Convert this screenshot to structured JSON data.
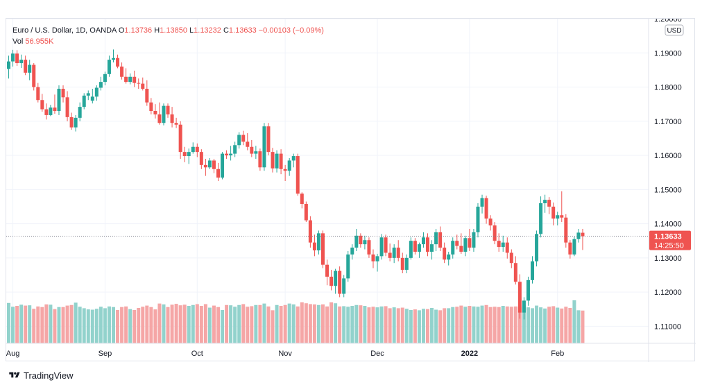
{
  "legend": {
    "symbol": "Euro / U.S. Dollar, 1D, OANDA",
    "o_label": "O",
    "o": "1.13736",
    "h_label": "H",
    "h": "1.13850",
    "l_label": "L",
    "l": "1.13232",
    "c_label": "C",
    "c": "1.13633",
    "change": "−0.00103 (−0.09%)",
    "vol_label": "Vol",
    "vol": "56.955K"
  },
  "price_scale": {
    "currency": "USD",
    "current_price": "1.13633",
    "countdown": "14:25:50"
  },
  "brand": {
    "name": "TradingView"
  },
  "colors": {
    "up": "#26a69a",
    "down": "#ef5350",
    "vol_up": "#92d2cc",
    "vol_down": "#f5a6a6",
    "grid": "#f0f3fa",
    "text": "#131722"
  },
  "chart_data": {
    "type": "candlestick",
    "title": "Euro / U.S. Dollar, 1D, OANDA",
    "ylim": [
      1.105,
      1.2
    ],
    "y_ticks": [
      "1.20000",
      "1.19000",
      "1.18000",
      "1.17000",
      "1.16000",
      "1.15000",
      "1.14000",
      "1.13000",
      "1.12000",
      "1.11000"
    ],
    "x_ticks": [
      {
        "label": "Aug",
        "index": 1
      },
      {
        "label": "Sep",
        "index": 23
      },
      {
        "label": "Oct",
        "index": 45
      },
      {
        "label": "Nov",
        "index": 66
      },
      {
        "label": "Dec",
        "index": 88
      },
      {
        "label": "2022",
        "index": 110
      },
      {
        "label": "Feb",
        "index": 131
      }
    ],
    "current_price_line": 1.13633,
    "ohlc": [
      [
        1.1853,
        1.1892,
        1.1825,
        1.1875
      ],
      [
        1.1875,
        1.1909,
        1.186,
        1.1898
      ],
      [
        1.1898,
        1.1908,
        1.1862,
        1.187
      ],
      [
        1.187,
        1.1895,
        1.1856,
        1.188
      ],
      [
        1.188,
        1.1892,
        1.1835,
        1.1842
      ],
      [
        1.1842,
        1.188,
        1.182,
        1.1865
      ],
      [
        1.1865,
        1.187,
        1.179,
        1.18
      ],
      [
        1.18,
        1.1812,
        1.1755,
        1.1762
      ],
      [
        1.1762,
        1.178,
        1.1728,
        1.1735
      ],
      [
        1.1735,
        1.1752,
        1.1705,
        1.1718
      ],
      [
        1.1718,
        1.1748,
        1.1715,
        1.174
      ],
      [
        1.174,
        1.1778,
        1.1722,
        1.173
      ],
      [
        1.173,
        1.1805,
        1.1718,
        1.1795
      ],
      [
        1.1795,
        1.1805,
        1.1755,
        1.177
      ],
      [
        1.177,
        1.1788,
        1.17,
        1.1712
      ],
      [
        1.1712,
        1.1725,
        1.1675,
        1.1682
      ],
      [
        1.1682,
        1.1718,
        1.167,
        1.171
      ],
      [
        1.171,
        1.1755,
        1.17,
        1.1742
      ],
      [
        1.1742,
        1.1782,
        1.1735,
        1.1775
      ],
      [
        1.1775,
        1.179,
        1.1762,
        1.1782
      ],
      [
        1.176,
        1.1795,
        1.1752,
        1.1772
      ],
      [
        1.1772,
        1.1805,
        1.176,
        1.1798
      ],
      [
        1.1798,
        1.183,
        1.179,
        1.1815
      ],
      [
        1.1815,
        1.1845,
        1.1805,
        1.1838
      ],
      [
        1.1838,
        1.1892,
        1.183,
        1.188
      ],
      [
        1.188,
        1.191,
        1.1872,
        1.1885
      ],
      [
        1.1885,
        1.1895,
        1.1855,
        1.186
      ],
      [
        1.186,
        1.1872,
        1.1822,
        1.183
      ],
      [
        1.183,
        1.1855,
        1.181,
        1.1815
      ],
      [
        1.1815,
        1.184,
        1.1808,
        1.183
      ],
      [
        1.183,
        1.1848,
        1.18,
        1.1812
      ],
      [
        1.1812,
        1.1825,
        1.1795,
        1.181
      ],
      [
        1.181,
        1.1828,
        1.179,
        1.1795
      ],
      [
        1.1795,
        1.182,
        1.1745,
        1.1755
      ],
      [
        1.1755,
        1.1768,
        1.172,
        1.173
      ],
      [
        1.173,
        1.175,
        1.1708,
        1.172
      ],
      [
        1.172,
        1.1755,
        1.169,
        1.1695
      ],
      [
        1.1695,
        1.1752,
        1.1688,
        1.1745
      ],
      [
        1.1745,
        1.1752,
        1.171,
        1.172
      ],
      [
        1.172,
        1.1742,
        1.1682,
        1.1695
      ],
      [
        1.1695,
        1.171,
        1.168,
        1.169
      ],
      [
        1.169,
        1.17,
        1.159,
        1.161
      ],
      [
        1.161,
        1.1625,
        1.158,
        1.1598
      ],
      [
        1.1598,
        1.162,
        1.1575,
        1.161
      ],
      [
        1.161,
        1.1638,
        1.1605,
        1.1625
      ],
      [
        1.1625,
        1.1635,
        1.1595,
        1.161
      ],
      [
        1.161,
        1.1618,
        1.156,
        1.1572
      ],
      [
        1.1572,
        1.159,
        1.154,
        1.1565
      ],
      [
        1.1565,
        1.1592,
        1.156,
        1.1585
      ],
      [
        1.1585,
        1.159,
        1.1548,
        1.156
      ],
      [
        1.156,
        1.1578,
        1.1525,
        1.1535
      ],
      [
        1.1535,
        1.161,
        1.153,
        1.1605
      ],
      [
        1.1605,
        1.1615,
        1.159,
        1.16
      ],
      [
        1.16,
        1.1628,
        1.1585,
        1.1605
      ],
      [
        1.1605,
        1.164,
        1.1595,
        1.163
      ],
      [
        1.163,
        1.1668,
        1.162,
        1.166
      ],
      [
        1.166,
        1.1672,
        1.163,
        1.164
      ],
      [
        1.164,
        1.1665,
        1.1615,
        1.1625
      ],
      [
        1.1625,
        1.1645,
        1.1595,
        1.1605
      ],
      [
        1.1605,
        1.1628,
        1.159,
        1.1612
      ],
      [
        1.1612,
        1.162,
        1.1555,
        1.1565
      ],
      [
        1.1565,
        1.1695,
        1.1555,
        1.1685
      ],
      [
        1.1685,
        1.1695,
        1.16,
        1.161
      ],
      [
        1.161,
        1.1622,
        1.155,
        1.1562
      ],
      [
        1.1562,
        1.1615,
        1.155,
        1.1605
      ],
      [
        1.1605,
        1.1618,
        1.1545,
        1.156
      ],
      [
        1.156,
        1.1572,
        1.1525,
        1.1555
      ],
      [
        1.1555,
        1.1592,
        1.154,
        1.1585
      ],
      [
        1.1585,
        1.1605,
        1.1565,
        1.1598
      ],
      [
        1.1598,
        1.1605,
        1.1482,
        1.1488
      ],
      [
        1.1488,
        1.1492,
        1.1445,
        1.1458
      ],
      [
        1.1458,
        1.1465,
        1.1405,
        1.141
      ],
      [
        1.141,
        1.1422,
        1.133,
        1.1345
      ],
      [
        1.1345,
        1.1368,
        1.1305,
        1.1322
      ],
      [
        1.1322,
        1.138,
        1.131,
        1.1372
      ],
      [
        1.1372,
        1.138,
        1.127,
        1.128
      ],
      [
        1.128,
        1.1295,
        1.122,
        1.1245
      ],
      [
        1.1245,
        1.1265,
        1.1205,
        1.1218
      ],
      [
        1.1218,
        1.1268,
        1.1195,
        1.1262
      ],
      [
        1.1262,
        1.1275,
        1.1185,
        1.1195
      ],
      [
        1.1195,
        1.125,
        1.1185,
        1.124
      ],
      [
        1.124,
        1.132,
        1.123,
        1.131
      ],
      [
        1.131,
        1.134,
        1.1295,
        1.133
      ],
      [
        1.133,
        1.1385,
        1.132,
        1.1365
      ],
      [
        1.1365,
        1.1372,
        1.133,
        1.134
      ],
      [
        1.134,
        1.1365,
        1.1325,
        1.1352
      ],
      [
        1.1352,
        1.136,
        1.13,
        1.131
      ],
      [
        1.131,
        1.1325,
        1.127,
        1.129
      ],
      [
        1.129,
        1.1312,
        1.126,
        1.1305
      ],
      [
        1.1305,
        1.137,
        1.1295,
        1.136
      ],
      [
        1.136,
        1.1368,
        1.1305,
        1.1315
      ],
      [
        1.1315,
        1.1342,
        1.129,
        1.13
      ],
      [
        1.13,
        1.134,
        1.1285,
        1.133
      ],
      [
        1.133,
        1.1352,
        1.129,
        1.13
      ],
      [
        1.13,
        1.1315,
        1.1255,
        1.1265
      ],
      [
        1.1265,
        1.131,
        1.1255,
        1.13
      ],
      [
        1.13,
        1.136,
        1.1295,
        1.135
      ],
      [
        1.135,
        1.1358,
        1.131,
        1.1318
      ],
      [
        1.1318,
        1.1345,
        1.13,
        1.134
      ],
      [
        1.134,
        1.1375,
        1.133,
        1.136
      ],
      [
        1.136,
        1.1372,
        1.1305,
        1.1318
      ],
      [
        1.1318,
        1.1352,
        1.1295,
        1.134
      ],
      [
        1.134,
        1.1385,
        1.132,
        1.1375
      ],
      [
        1.1375,
        1.1392,
        1.132,
        1.133
      ],
      [
        1.133,
        1.1345,
        1.1285,
        1.1295
      ],
      [
        1.1295,
        1.1318,
        1.1278,
        1.131
      ],
      [
        1.131,
        1.136,
        1.1298,
        1.135
      ],
      [
        1.135,
        1.1368,
        1.1325,
        1.1335
      ],
      [
        1.1335,
        1.1372,
        1.1312,
        1.1318
      ],
      [
        1.1318,
        1.1365,
        1.1305,
        1.1358
      ],
      [
        1.1358,
        1.1385,
        1.132,
        1.133
      ],
      [
        1.133,
        1.1385,
        1.1318,
        1.1375
      ],
      [
        1.1375,
        1.146,
        1.136,
        1.145
      ],
      [
        1.145,
        1.1485,
        1.143,
        1.1475
      ],
      [
        1.1475,
        1.1482,
        1.14,
        1.1415
      ],
      [
        1.1415,
        1.1425,
        1.138,
        1.1395
      ],
      [
        1.1395,
        1.1405,
        1.134,
        1.135
      ],
      [
        1.135,
        1.1372,
        1.1318,
        1.1332
      ],
      [
        1.1332,
        1.1365,
        1.1318,
        1.1345
      ],
      [
        1.1345,
        1.136,
        1.1298,
        1.1315
      ],
      [
        1.1315,
        1.1325,
        1.127,
        1.1285
      ],
      [
        1.1285,
        1.1305,
        1.1222,
        1.123
      ],
      [
        1.123,
        1.1252,
        1.1122,
        1.114
      ],
      [
        1.114,
        1.1185,
        1.112,
        1.1175
      ],
      [
        1.1175,
        1.1245,
        1.116,
        1.1235
      ],
      [
        1.1235,
        1.1305,
        1.1225,
        1.129
      ],
      [
        1.129,
        1.138,
        1.1275,
        1.137
      ],
      [
        1.137,
        1.148,
        1.136,
        1.146
      ],
      [
        1.146,
        1.1485,
        1.1432,
        1.147
      ],
      [
        1.147,
        1.1478,
        1.1428,
        1.145
      ],
      [
        1.145,
        1.1462,
        1.1395,
        1.1415
      ],
      [
        1.1415,
        1.1435,
        1.1395,
        1.1425
      ],
      [
        1.1425,
        1.1495,
        1.1405,
        1.1418
      ],
      [
        1.1418,
        1.1428,
        1.133,
        1.1345
      ],
      [
        1.1345,
        1.1352,
        1.1298,
        1.131
      ],
      [
        1.131,
        1.1362,
        1.1305,
        1.1355
      ],
      [
        1.1355,
        1.1385,
        1.1345,
        1.1374
      ],
      [
        1.13736,
        1.1385,
        1.13232,
        1.13633
      ]
    ],
    "volume": [
      138,
      125,
      128,
      132,
      129,
      130,
      118,
      126,
      124,
      133,
      132,
      117,
      124,
      124,
      129,
      131,
      139,
      125,
      120,
      116,
      115,
      118,
      125,
      120,
      126,
      124,
      114,
      124,
      126,
      117,
      114,
      121,
      125,
      129,
      124,
      116,
      136,
      133,
      124,
      132,
      135,
      130,
      132,
      128,
      131,
      134,
      128,
      134,
      122,
      129,
      124,
      114,
      131,
      130,
      125,
      131,
      134,
      125,
      127,
      131,
      131,
      136,
      126,
      113,
      131,
      128,
      131,
      136,
      133,
      126,
      140,
      137,
      134,
      133,
      131,
      133,
      126,
      140,
      137,
      126,
      127,
      125,
      128,
      131,
      130,
      128,
      123,
      125,
      123,
      126,
      127,
      120,
      123,
      120,
      122,
      118,
      114,
      116,
      113,
      118,
      117,
      121,
      115,
      113,
      120,
      120,
      124,
      125,
      129,
      125,
      128,
      126,
      125,
      129,
      131,
      124,
      125,
      124,
      128,
      126,
      125,
      126,
      124,
      131,
      123,
      120,
      129,
      123,
      119,
      125,
      127,
      122,
      119,
      125,
      121,
      147,
      113,
      112
    ]
  }
}
